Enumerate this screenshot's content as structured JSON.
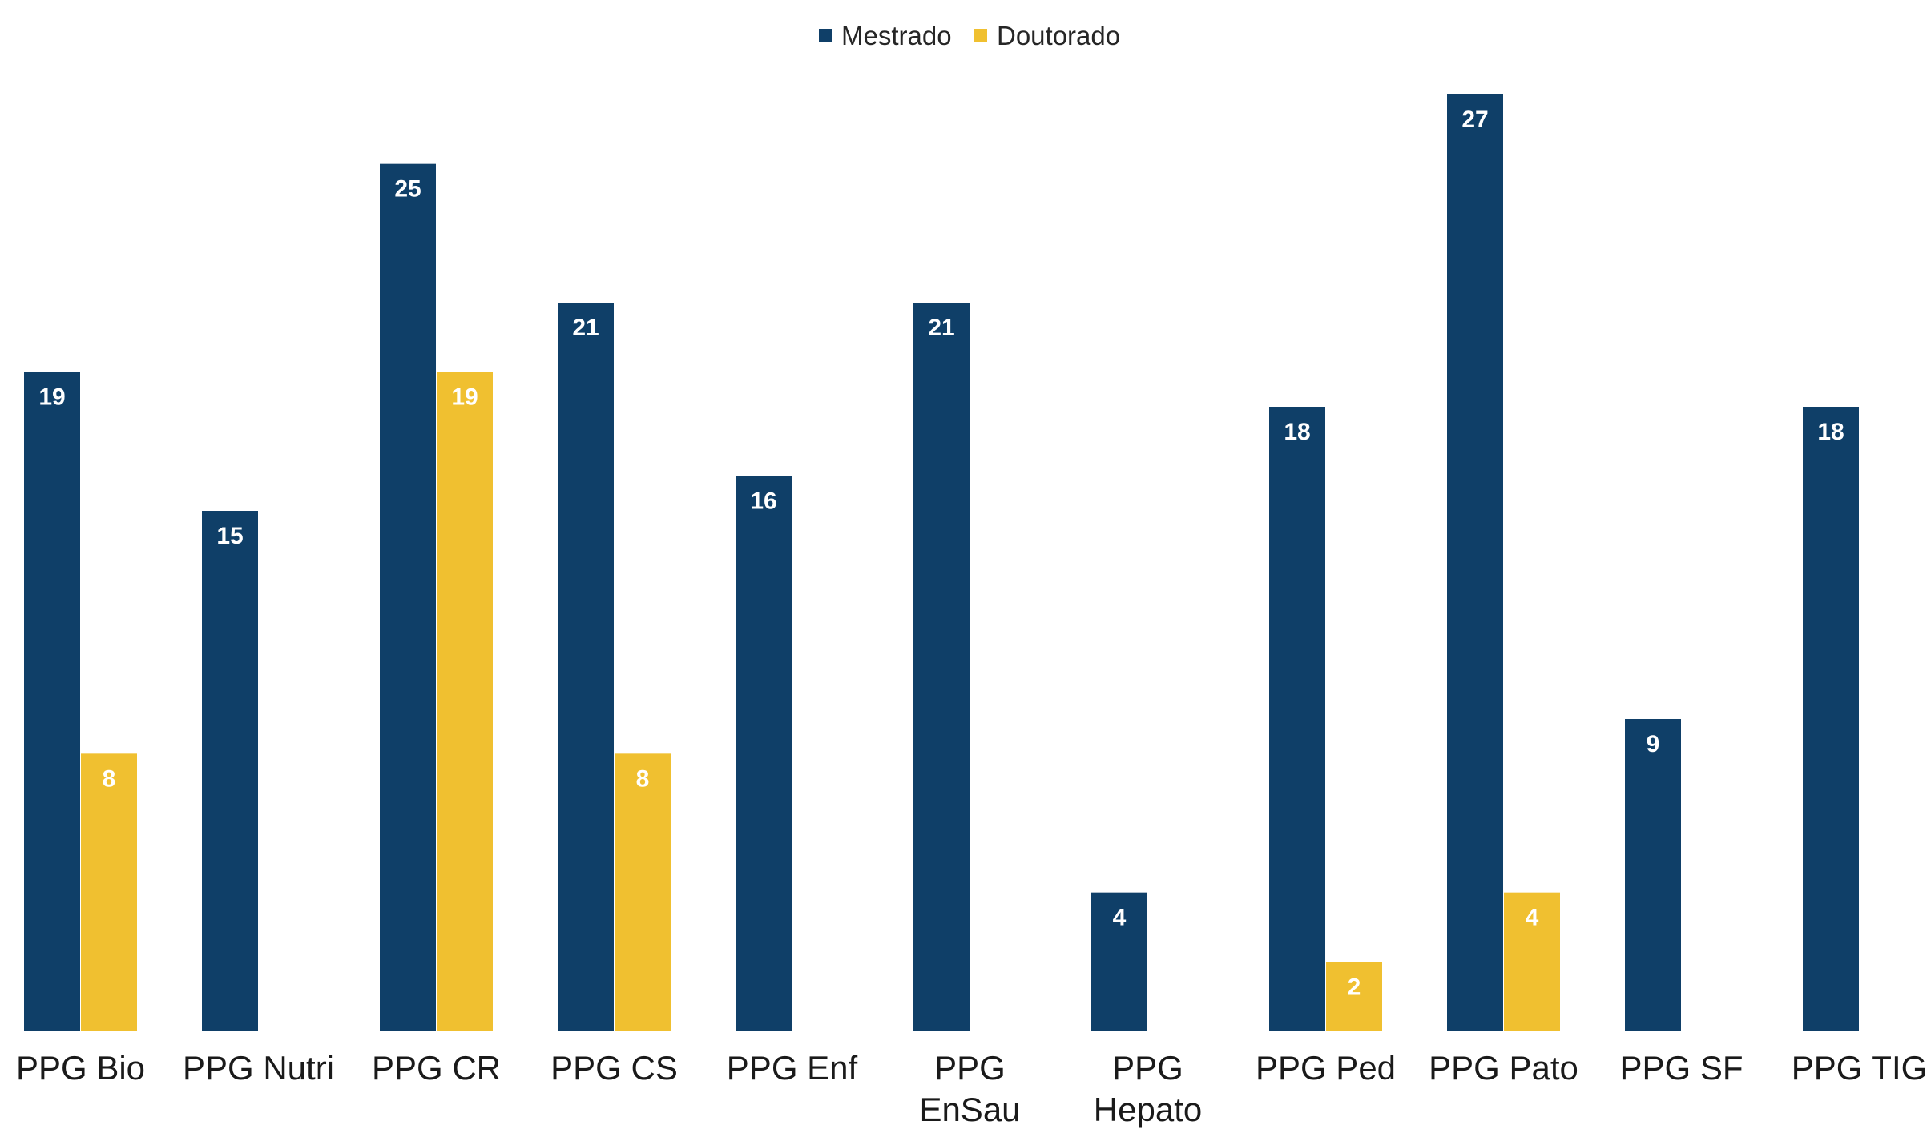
{
  "chart_data": {
    "type": "bar",
    "title": "",
    "xlabel": "",
    "ylabel": "",
    "ylim": [
      0,
      27
    ],
    "grid": false,
    "legend_position": "top-center",
    "categories": [
      [
        "PPG Bio"
      ],
      [
        "PPG Nutri"
      ],
      [
        "PPG CR"
      ],
      [
        "PPG CS"
      ],
      [
        "PPG Enf"
      ],
      [
        "PPG",
        "EnSau"
      ],
      [
        "PPG",
        "Hepato"
      ],
      [
        "PPG Ped"
      ],
      [
        "PPG Pato"
      ],
      [
        "PPG SF"
      ],
      [
        "PPG TIG"
      ]
    ],
    "series": [
      {
        "name": "Mestrado",
        "color": "#0f3f68",
        "values": [
          19,
          15,
          25,
          21,
          16,
          21,
          4,
          18,
          27,
          9,
          18
        ]
      },
      {
        "name": "Doutorado",
        "color": "#f0c030",
        "values": [
          8,
          null,
          19,
          8,
          null,
          null,
          null,
          2,
          4,
          null,
          null
        ]
      }
    ]
  }
}
